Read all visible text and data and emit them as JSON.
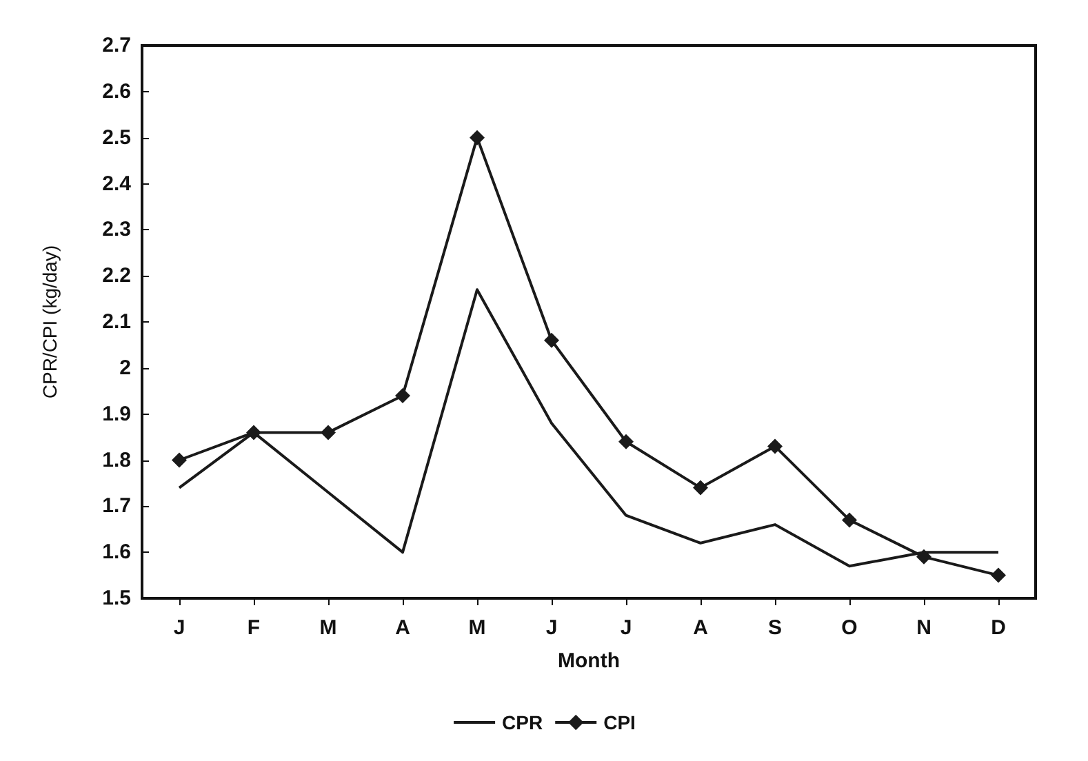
{
  "chart_data": {
    "type": "line",
    "xlabel": "Month",
    "ylabel": "CPR/CPI (kg/day)",
    "categories": [
      "J",
      "F",
      "M",
      "A",
      "M",
      "J",
      "J",
      "A",
      "S",
      "O",
      "N",
      "D"
    ],
    "series": [
      {
        "name": "CPR",
        "color": "#1a1a1a",
        "marker": "none",
        "values": [
          1.74,
          1.86,
          1.73,
          1.6,
          2.17,
          1.88,
          1.68,
          1.62,
          1.66,
          1.57,
          1.6,
          1.6
        ]
      },
      {
        "name": "CPI",
        "color": "#1a1a1a",
        "marker": "diamond",
        "values": [
          1.8,
          1.86,
          1.86,
          1.94,
          2.5,
          2.06,
          1.84,
          1.74,
          1.83,
          1.67,
          1.59,
          1.55
        ]
      }
    ],
    "ylim": [
      1.5,
      2.7
    ],
    "yticks": [
      1.5,
      1.6,
      1.7,
      1.8,
      1.9,
      2,
      2.1,
      2.2,
      2.3,
      2.4,
      2.5,
      2.6,
      2.7
    ],
    "grid": false,
    "legend": "bottom",
    "line_style": "solid"
  }
}
